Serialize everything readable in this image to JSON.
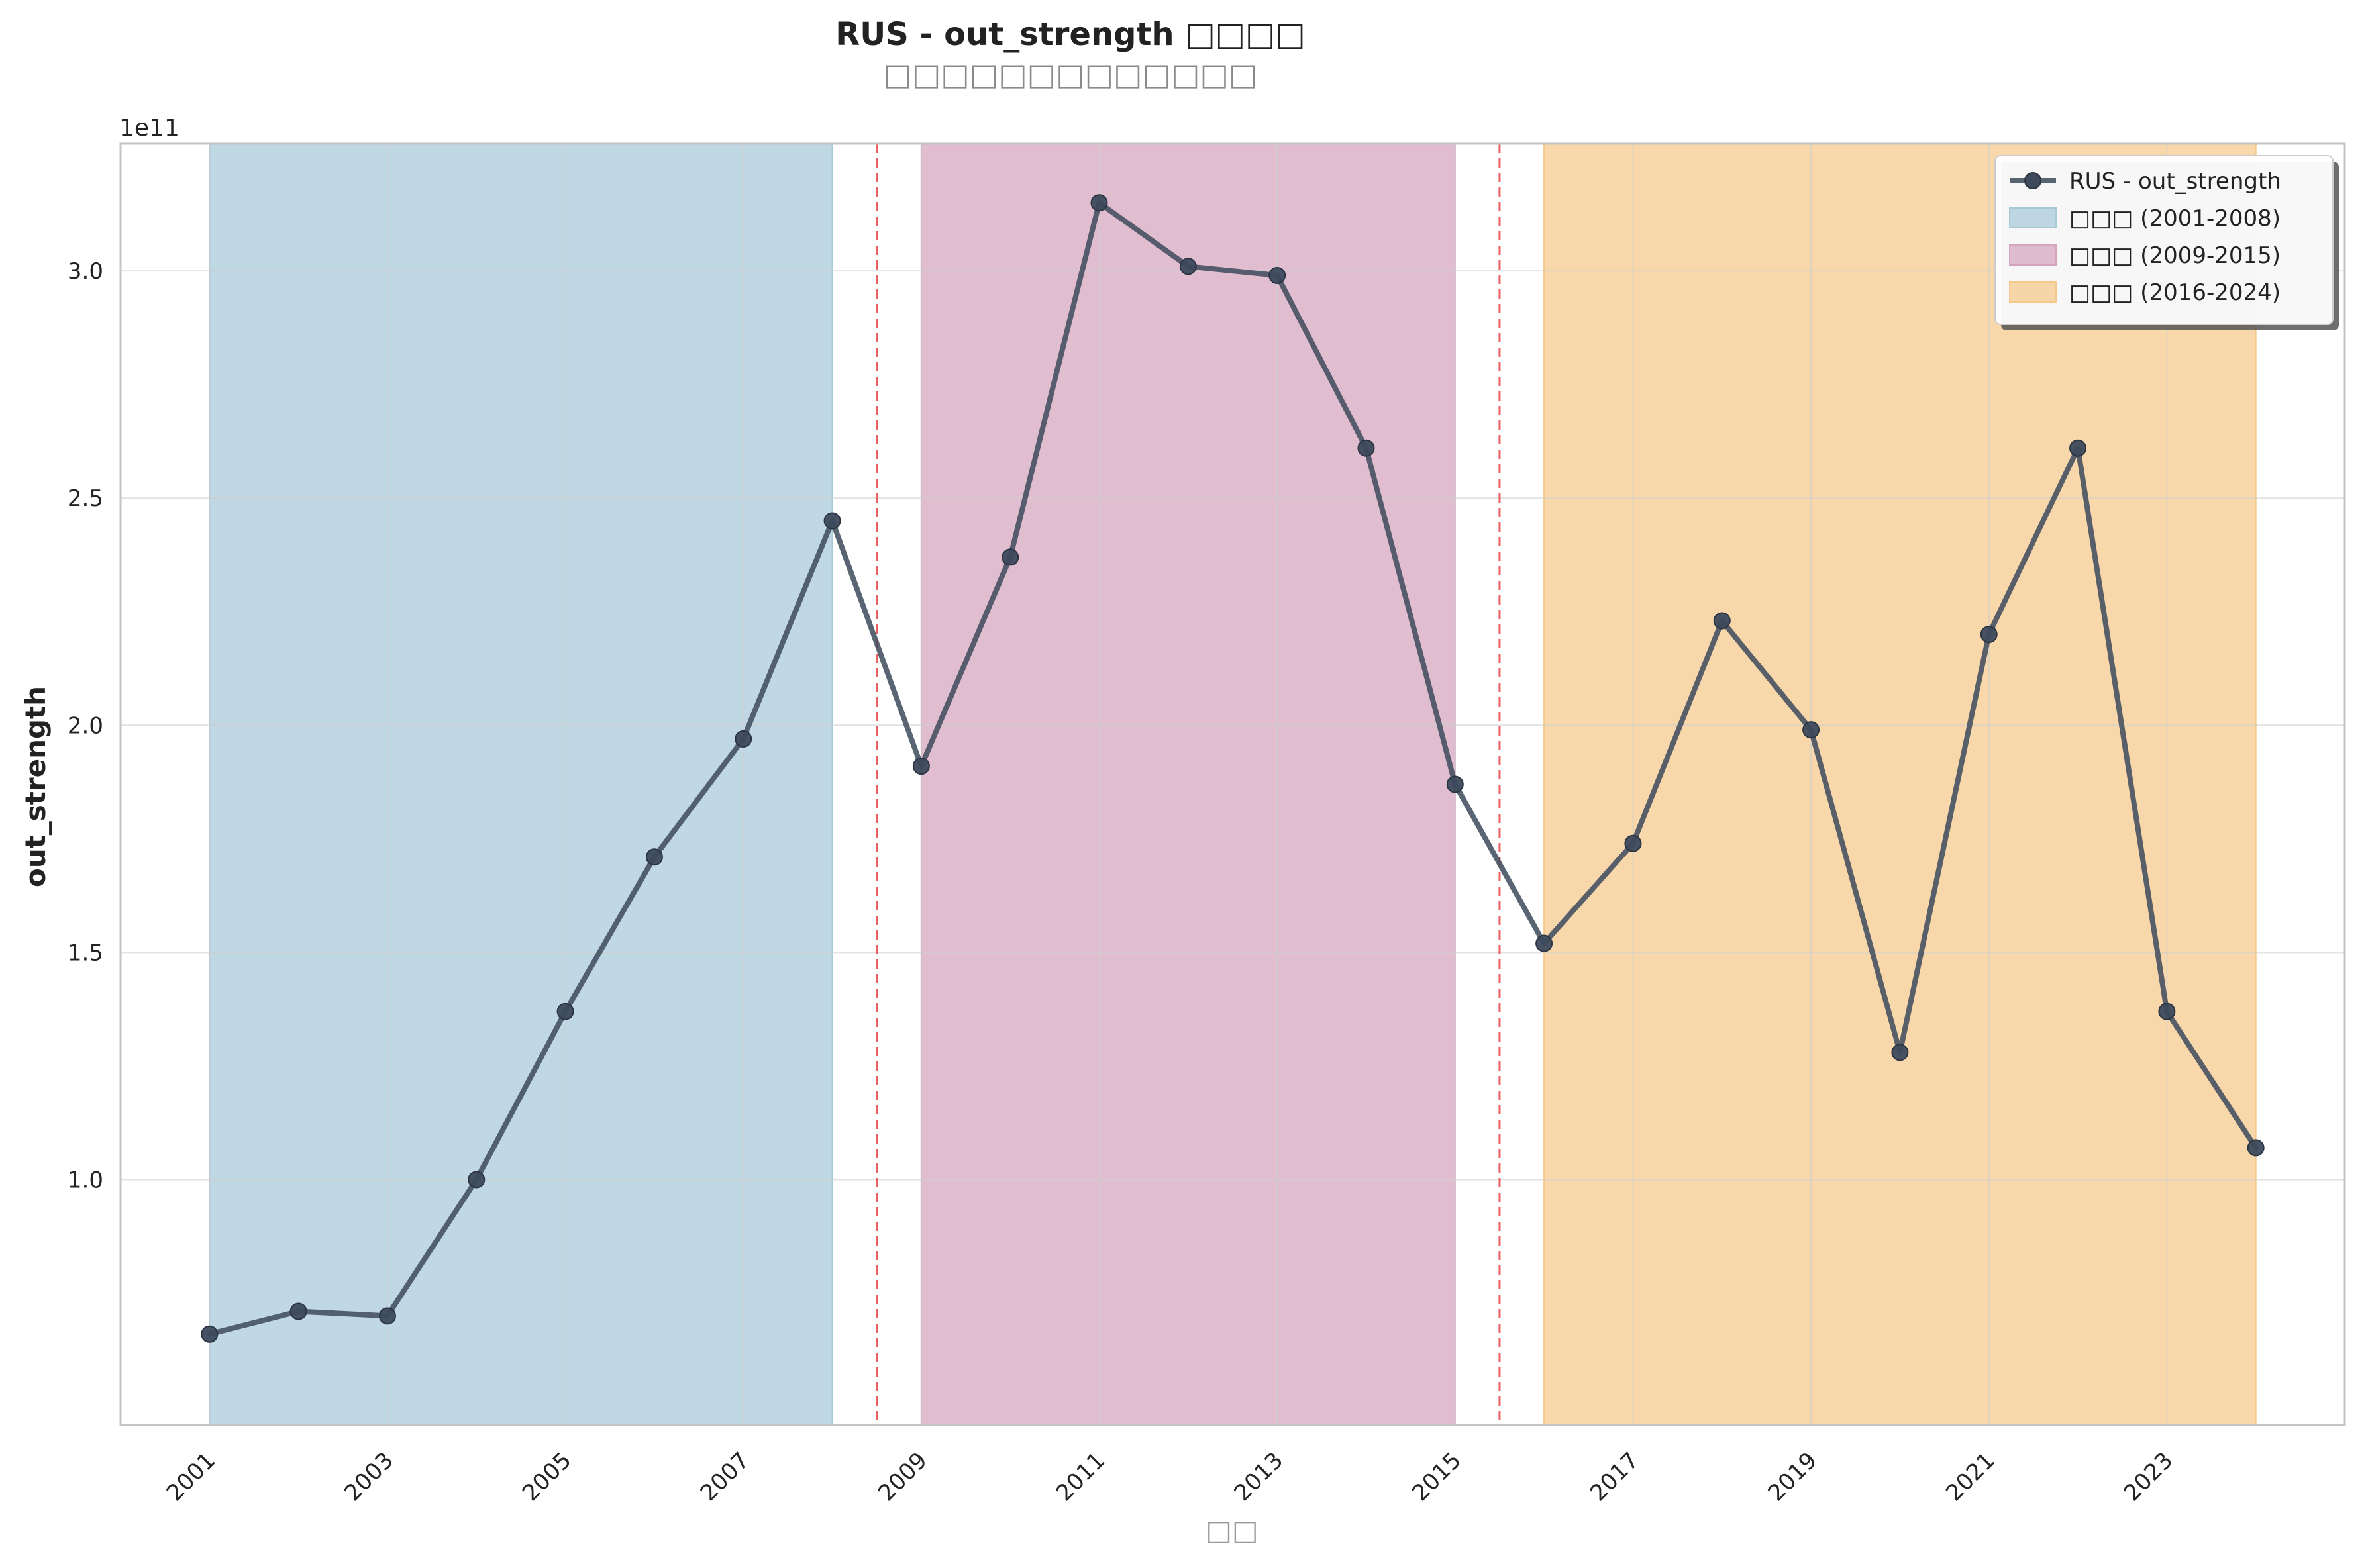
{
  "chart_data": {
    "type": "line",
    "title": "RUS - out_strength □□□□",
    "subtitle": "□□□□□□□□□□□□□",
    "xlabel": "□□",
    "ylabel": "out_strength",
    "y_offset_label": "1e11",
    "xlim": [
      2000,
      2025
    ],
    "ylim": [
      0.46,
      3.28
    ],
    "y_scale_factor": 100000000000,
    "grid": true,
    "legend_position": "top-right",
    "x_tick_labels": [
      "2001",
      "2003",
      "2005",
      "2007",
      "2009",
      "2011",
      "2013",
      "2015",
      "2017",
      "2019",
      "2021",
      "2023"
    ],
    "y_tick_labels": [
      "1.0",
      "1.5",
      "2.0",
      "2.5",
      "3.0"
    ],
    "series": [
      {
        "name": "RUS - out_strength",
        "color": "#3d4a5c",
        "x": [
          2001,
          2002,
          2003,
          2004,
          2005,
          2006,
          2007,
          2008,
          2009,
          2010,
          2011,
          2012,
          2013,
          2014,
          2015,
          2016,
          2017,
          2018,
          2019,
          2020,
          2021,
          2022,
          2023,
          2024
        ],
        "y": [
          0.66,
          0.71,
          0.7,
          1.0,
          1.37,
          1.71,
          1.97,
          2.45,
          1.91,
          2.37,
          3.15,
          3.01,
          2.99,
          2.61,
          1.87,
          1.52,
          1.74,
          2.23,
          1.99,
          1.28,
          2.2,
          2.61,
          1.37,
          1.07
        ]
      }
    ],
    "periods": [
      {
        "label": "□□□ (2001-2008)",
        "start": 2001,
        "end": 2008,
        "color": "#a6c9d8"
      },
      {
        "label": "□□□ (2009-2015)",
        "start": 2009,
        "end": 2015,
        "color": "#d4a5bd"
      },
      {
        "label": "□□□ (2016-2024)",
        "start": 2016,
        "end": 2024,
        "color": "#f5c98a"
      }
    ],
    "breakpoints": [
      2008.5,
      2015.5
    ],
    "breakpoint_color": "#e84545"
  }
}
